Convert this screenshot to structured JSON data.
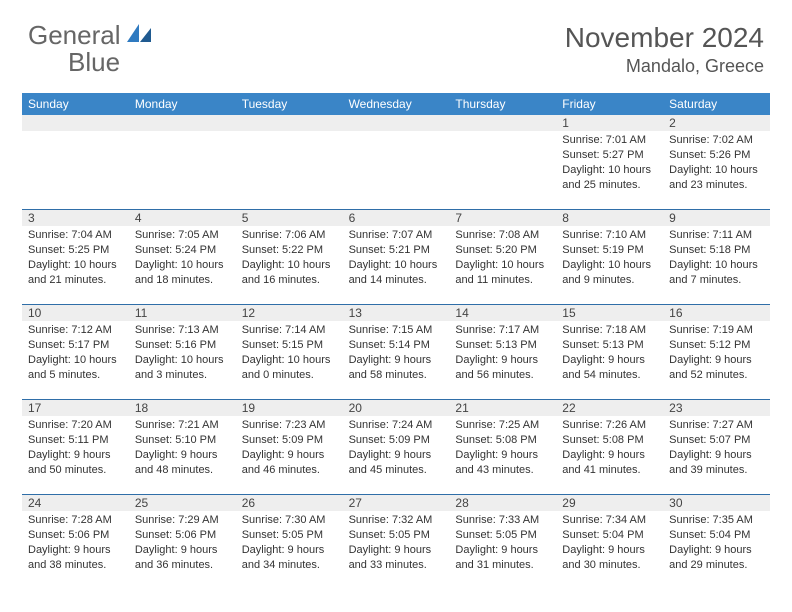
{
  "brand": {
    "name1": "General",
    "name2": "Blue"
  },
  "title": "November 2024",
  "location": "Mandalo, Greece",
  "colors": {
    "header_bar": "#3a85c7",
    "daynum_bg": "#eeeeee",
    "daynum_border": "#2f6ea8",
    "text": "#333333",
    "brand_gray": "#666666",
    "brand_blue": "#2f7ac0"
  },
  "dow": [
    "Sunday",
    "Monday",
    "Tuesday",
    "Wednesday",
    "Thursday",
    "Friday",
    "Saturday"
  ],
  "weeks": [
    [
      null,
      null,
      null,
      null,
      null,
      {
        "n": "1",
        "sr": "7:01 AM",
        "ss": "5:27 PM",
        "dl": "10 hours and 25 minutes."
      },
      {
        "n": "2",
        "sr": "7:02 AM",
        "ss": "5:26 PM",
        "dl": "10 hours and 23 minutes."
      }
    ],
    [
      {
        "n": "3",
        "sr": "7:04 AM",
        "ss": "5:25 PM",
        "dl": "10 hours and 21 minutes."
      },
      {
        "n": "4",
        "sr": "7:05 AM",
        "ss": "5:24 PM",
        "dl": "10 hours and 18 minutes."
      },
      {
        "n": "5",
        "sr": "7:06 AM",
        "ss": "5:22 PM",
        "dl": "10 hours and 16 minutes."
      },
      {
        "n": "6",
        "sr": "7:07 AM",
        "ss": "5:21 PM",
        "dl": "10 hours and 14 minutes."
      },
      {
        "n": "7",
        "sr": "7:08 AM",
        "ss": "5:20 PM",
        "dl": "10 hours and 11 minutes."
      },
      {
        "n": "8",
        "sr": "7:10 AM",
        "ss": "5:19 PM",
        "dl": "10 hours and 9 minutes."
      },
      {
        "n": "9",
        "sr": "7:11 AM",
        "ss": "5:18 PM",
        "dl": "10 hours and 7 minutes."
      }
    ],
    [
      {
        "n": "10",
        "sr": "7:12 AM",
        "ss": "5:17 PM",
        "dl": "10 hours and 5 minutes."
      },
      {
        "n": "11",
        "sr": "7:13 AM",
        "ss": "5:16 PM",
        "dl": "10 hours and 3 minutes."
      },
      {
        "n": "12",
        "sr": "7:14 AM",
        "ss": "5:15 PM",
        "dl": "10 hours and 0 minutes."
      },
      {
        "n": "13",
        "sr": "7:15 AM",
        "ss": "5:14 PM",
        "dl": "9 hours and 58 minutes."
      },
      {
        "n": "14",
        "sr": "7:17 AM",
        "ss": "5:13 PM",
        "dl": "9 hours and 56 minutes."
      },
      {
        "n": "15",
        "sr": "7:18 AM",
        "ss": "5:13 PM",
        "dl": "9 hours and 54 minutes."
      },
      {
        "n": "16",
        "sr": "7:19 AM",
        "ss": "5:12 PM",
        "dl": "9 hours and 52 minutes."
      }
    ],
    [
      {
        "n": "17",
        "sr": "7:20 AM",
        "ss": "5:11 PM",
        "dl": "9 hours and 50 minutes."
      },
      {
        "n": "18",
        "sr": "7:21 AM",
        "ss": "5:10 PM",
        "dl": "9 hours and 48 minutes."
      },
      {
        "n": "19",
        "sr": "7:23 AM",
        "ss": "5:09 PM",
        "dl": "9 hours and 46 minutes."
      },
      {
        "n": "20",
        "sr": "7:24 AM",
        "ss": "5:09 PM",
        "dl": "9 hours and 45 minutes."
      },
      {
        "n": "21",
        "sr": "7:25 AM",
        "ss": "5:08 PM",
        "dl": "9 hours and 43 minutes."
      },
      {
        "n": "22",
        "sr": "7:26 AM",
        "ss": "5:08 PM",
        "dl": "9 hours and 41 minutes."
      },
      {
        "n": "23",
        "sr": "7:27 AM",
        "ss": "5:07 PM",
        "dl": "9 hours and 39 minutes."
      }
    ],
    [
      {
        "n": "24",
        "sr": "7:28 AM",
        "ss": "5:06 PM",
        "dl": "9 hours and 38 minutes."
      },
      {
        "n": "25",
        "sr": "7:29 AM",
        "ss": "5:06 PM",
        "dl": "9 hours and 36 minutes."
      },
      {
        "n": "26",
        "sr": "7:30 AM",
        "ss": "5:05 PM",
        "dl": "9 hours and 34 minutes."
      },
      {
        "n": "27",
        "sr": "7:32 AM",
        "ss": "5:05 PM",
        "dl": "9 hours and 33 minutes."
      },
      {
        "n": "28",
        "sr": "7:33 AM",
        "ss": "5:05 PM",
        "dl": "9 hours and 31 minutes."
      },
      {
        "n": "29",
        "sr": "7:34 AM",
        "ss": "5:04 PM",
        "dl": "9 hours and 30 minutes."
      },
      {
        "n": "30",
        "sr": "7:35 AM",
        "ss": "5:04 PM",
        "dl": "9 hours and 29 minutes."
      }
    ]
  ],
  "labels": {
    "sunrise": "Sunrise: ",
    "sunset": "Sunset: ",
    "daylight": "Daylight: "
  }
}
